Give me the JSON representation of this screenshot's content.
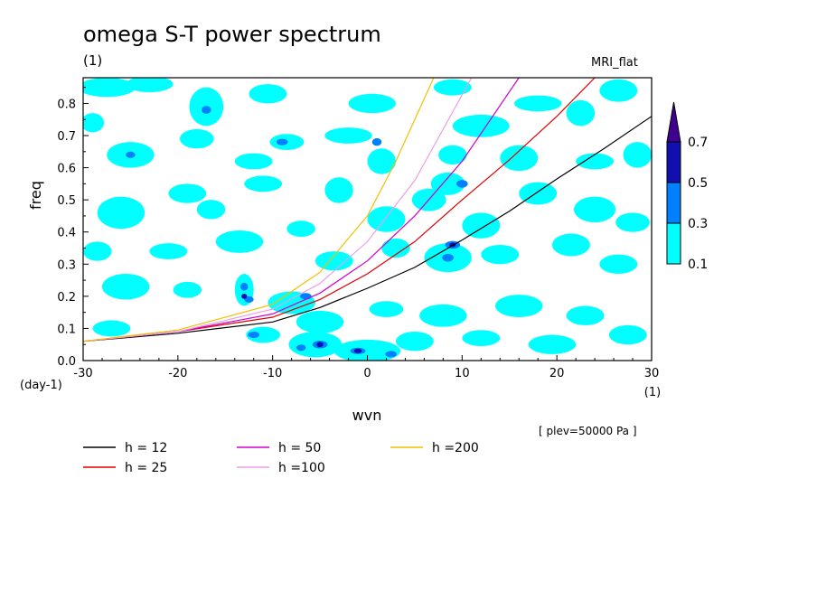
{
  "header": {
    "title": "omega S-T power spectrum",
    "units": "(1)",
    "model": "MRI_flat",
    "level_note": "[ plev=50000 Pa ]"
  },
  "colors": {
    "shade_0_1": "#00ffff",
    "shade_0_3": "#0080ff",
    "shade_0_5": "#1010b0",
    "shade_0_7": "#400090"
  },
  "chart_data": {
    "type": "contour-line",
    "title": "omega S-T power spectrum",
    "xlabel": "wvn",
    "x_unit": "(1)",
    "ylabel": "freq",
    "y_unit": "(day-1)",
    "xlim": [
      -30,
      30
    ],
    "ylim": [
      0,
      0.88
    ],
    "x_ticks": [
      -30,
      -20,
      -10,
      0,
      10,
      20,
      30
    ],
    "x_tick_labels": [
      "-30",
      "-20",
      "-10",
      "0",
      "10",
      "20",
      "30"
    ],
    "y_ticks": [
      0,
      0.1,
      0.2,
      0.3,
      0.4,
      0.5,
      0.6,
      0.7,
      0.8
    ],
    "y_tick_labels": [
      "0.0",
      "0.1",
      "0.2",
      "0.3",
      "0.4",
      "0.5",
      "0.6",
      "0.7",
      "0.8"
    ],
    "contour_levels": [
      0.1,
      0.3,
      0.5,
      0.7
    ],
    "colorbar_labels": [
      "0.1",
      "0.3",
      "0.5",
      "0.7"
    ],
    "series": [
      {
        "name": "h = 12",
        "color": "#000000",
        "x": [
          -30,
          -20,
          -10,
          -5,
          0,
          5,
          10,
          15,
          20,
          25,
          30
        ],
        "y": [
          0.06,
          0.085,
          0.12,
          0.165,
          0.225,
          0.29,
          0.375,
          0.465,
          0.565,
          0.66,
          0.76
        ]
      },
      {
        "name": "h = 25",
        "color": "#e00000",
        "x": [
          -30,
          -20,
          -10,
          -5,
          0,
          5,
          10,
          15,
          20,
          24
        ],
        "y": [
          0.06,
          0.09,
          0.135,
          0.19,
          0.27,
          0.37,
          0.5,
          0.625,
          0.76,
          0.88
        ]
      },
      {
        "name": "h = 50",
        "color": "#d000d0",
        "x": [
          -30,
          -20,
          -10,
          -5,
          0,
          5,
          10,
          16
        ],
        "y": [
          0.06,
          0.09,
          0.145,
          0.21,
          0.31,
          0.45,
          0.62,
          0.88
        ]
      },
      {
        "name": "h =100",
        "color": "#e8a0e8",
        "x": [
          -30,
          -20,
          -10,
          -5,
          0,
          5,
          11
        ],
        "y": [
          0.06,
          0.09,
          0.16,
          0.24,
          0.37,
          0.56,
          0.88
        ]
      },
      {
        "name": "h =200",
        "color": "#f0c000",
        "x": [
          -30,
          -20,
          -10,
          -5,
          0,
          3,
          7
        ],
        "y": [
          0.06,
          0.095,
          0.175,
          0.275,
          0.45,
          0.62,
          0.88
        ]
      }
    ],
    "blobs": [
      {
        "x": -27.5,
        "y": 0.85,
        "rx": 3.0,
        "ry": 0.03,
        "level": 0.1
      },
      {
        "x": -23.0,
        "y": 0.86,
        "rx": 2.5,
        "ry": 0.025,
        "level": 0.1
      },
      {
        "x": -17.0,
        "y": 0.79,
        "rx": 1.8,
        "ry": 0.06,
        "level": 0.1
      },
      {
        "x": -10.5,
        "y": 0.83,
        "rx": 2.0,
        "ry": 0.03,
        "level": 0.1
      },
      {
        "x": 0.5,
        "y": 0.8,
        "rx": 2.5,
        "ry": 0.03,
        "level": 0.1
      },
      {
        "x": 9.0,
        "y": 0.85,
        "rx": 2.0,
        "ry": 0.025,
        "level": 0.1
      },
      {
        "x": 12.0,
        "y": 0.73,
        "rx": 3.0,
        "ry": 0.035,
        "level": 0.1
      },
      {
        "x": 18.0,
        "y": 0.8,
        "rx": 2.5,
        "ry": 0.025,
        "level": 0.1
      },
      {
        "x": 22.5,
        "y": 0.77,
        "rx": 1.5,
        "ry": 0.04,
        "level": 0.1
      },
      {
        "x": 26.5,
        "y": 0.84,
        "rx": 2.0,
        "ry": 0.035,
        "level": 0.1
      },
      {
        "x": -29.0,
        "y": 0.74,
        "rx": 1.2,
        "ry": 0.03,
        "level": 0.1
      },
      {
        "x": -25.0,
        "y": 0.64,
        "rx": 2.5,
        "ry": 0.04,
        "level": 0.1
      },
      {
        "x": -18.0,
        "y": 0.69,
        "rx": 1.8,
        "ry": 0.03,
        "level": 0.1
      },
      {
        "x": -12.0,
        "y": 0.62,
        "rx": 2.0,
        "ry": 0.025,
        "level": 0.1
      },
      {
        "x": -8.5,
        "y": 0.68,
        "rx": 1.8,
        "ry": 0.025,
        "level": 0.1
      },
      {
        "x": -2.0,
        "y": 0.7,
        "rx": 2.5,
        "ry": 0.025,
        "level": 0.1
      },
      {
        "x": 1.5,
        "y": 0.62,
        "rx": 1.5,
        "ry": 0.04,
        "level": 0.1
      },
      {
        "x": 9.0,
        "y": 0.64,
        "rx": 1.5,
        "ry": 0.03,
        "level": 0.1
      },
      {
        "x": 16.0,
        "y": 0.63,
        "rx": 2.0,
        "ry": 0.04,
        "level": 0.1
      },
      {
        "x": 24.0,
        "y": 0.62,
        "rx": 2.0,
        "ry": 0.025,
        "level": 0.1
      },
      {
        "x": 28.5,
        "y": 0.64,
        "rx": 1.5,
        "ry": 0.04,
        "level": 0.1
      },
      {
        "x": -26.0,
        "y": 0.46,
        "rx": 2.5,
        "ry": 0.05,
        "level": 0.1
      },
      {
        "x": -19.0,
        "y": 0.52,
        "rx": 2.0,
        "ry": 0.03,
        "level": 0.1
      },
      {
        "x": -16.5,
        "y": 0.47,
        "rx": 1.5,
        "ry": 0.03,
        "level": 0.1
      },
      {
        "x": -11.0,
        "y": 0.55,
        "rx": 2.0,
        "ry": 0.025,
        "level": 0.1
      },
      {
        "x": -3.0,
        "y": 0.53,
        "rx": 1.5,
        "ry": 0.04,
        "level": 0.1
      },
      {
        "x": 2.0,
        "y": 0.44,
        "rx": 2.0,
        "ry": 0.04,
        "level": 0.1
      },
      {
        "x": 6.5,
        "y": 0.5,
        "rx": 1.8,
        "ry": 0.035,
        "level": 0.1
      },
      {
        "x": 8.5,
        "y": 0.55,
        "rx": 1.8,
        "ry": 0.035,
        "level": 0.1
      },
      {
        "x": 12.0,
        "y": 0.42,
        "rx": 2.0,
        "ry": 0.04,
        "level": 0.1
      },
      {
        "x": 18.0,
        "y": 0.52,
        "rx": 2.0,
        "ry": 0.035,
        "level": 0.1
      },
      {
        "x": 24.0,
        "y": 0.47,
        "rx": 2.2,
        "ry": 0.04,
        "level": 0.1
      },
      {
        "x": 28.0,
        "y": 0.43,
        "rx": 1.8,
        "ry": 0.03,
        "level": 0.1
      },
      {
        "x": -28.5,
        "y": 0.34,
        "rx": 1.5,
        "ry": 0.03,
        "level": 0.1
      },
      {
        "x": -21.0,
        "y": 0.34,
        "rx": 2.0,
        "ry": 0.025,
        "level": 0.1
      },
      {
        "x": -13.5,
        "y": 0.37,
        "rx": 2.5,
        "ry": 0.035,
        "level": 0.1
      },
      {
        "x": -7.0,
        "y": 0.41,
        "rx": 1.5,
        "ry": 0.025,
        "level": 0.1
      },
      {
        "x": -3.5,
        "y": 0.31,
        "rx": 2.0,
        "ry": 0.03,
        "level": 0.1
      },
      {
        "x": 3.0,
        "y": 0.35,
        "rx": 1.5,
        "ry": 0.03,
        "level": 0.1
      },
      {
        "x": 8.5,
        "y": 0.32,
        "rx": 2.5,
        "ry": 0.045,
        "level": 0.1
      },
      {
        "x": 14.0,
        "y": 0.33,
        "rx": 2.0,
        "ry": 0.03,
        "level": 0.1
      },
      {
        "x": 21.5,
        "y": 0.36,
        "rx": 2.0,
        "ry": 0.035,
        "level": 0.1
      },
      {
        "x": 26.5,
        "y": 0.3,
        "rx": 2.0,
        "ry": 0.03,
        "level": 0.1
      },
      {
        "x": -25.5,
        "y": 0.23,
        "rx": 2.5,
        "ry": 0.04,
        "level": 0.1
      },
      {
        "x": -19.0,
        "y": 0.22,
        "rx": 1.5,
        "ry": 0.025,
        "level": 0.1
      },
      {
        "x": -13.0,
        "y": 0.22,
        "rx": 1.0,
        "ry": 0.05,
        "level": 0.1
      },
      {
        "x": -8.0,
        "y": 0.18,
        "rx": 2.5,
        "ry": 0.035,
        "level": 0.1
      },
      {
        "x": -5.0,
        "y": 0.12,
        "rx": 2.5,
        "ry": 0.035,
        "level": 0.1
      },
      {
        "x": 2.0,
        "y": 0.16,
        "rx": 1.8,
        "ry": 0.025,
        "level": 0.1
      },
      {
        "x": 8.0,
        "y": 0.14,
        "rx": 2.5,
        "ry": 0.035,
        "level": 0.1
      },
      {
        "x": 16.0,
        "y": 0.17,
        "rx": 2.5,
        "ry": 0.035,
        "level": 0.1
      },
      {
        "x": 23.0,
        "y": 0.14,
        "rx": 2.0,
        "ry": 0.03,
        "level": 0.1
      },
      {
        "x": -27.0,
        "y": 0.1,
        "rx": 2.0,
        "ry": 0.025,
        "level": 0.1
      },
      {
        "x": -11.0,
        "y": 0.08,
        "rx": 1.8,
        "ry": 0.025,
        "level": 0.1
      },
      {
        "x": -5.5,
        "y": 0.05,
        "rx": 2.8,
        "ry": 0.04,
        "level": 0.1
      },
      {
        "x": 0.0,
        "y": 0.03,
        "rx": 3.5,
        "ry": 0.035,
        "level": 0.1
      },
      {
        "x": 5.0,
        "y": 0.06,
        "rx": 2.0,
        "ry": 0.03,
        "level": 0.1
      },
      {
        "x": 12.0,
        "y": 0.07,
        "rx": 2.0,
        "ry": 0.025,
        "level": 0.1
      },
      {
        "x": 19.5,
        "y": 0.05,
        "rx": 2.5,
        "ry": 0.03,
        "level": 0.1
      },
      {
        "x": 27.5,
        "y": 0.08,
        "rx": 2.0,
        "ry": 0.03,
        "level": 0.1
      },
      {
        "x": -17.0,
        "y": 0.78,
        "rx": 0.5,
        "ry": 0.012,
        "level": 0.3
      },
      {
        "x": -9.0,
        "y": 0.68,
        "rx": 0.6,
        "ry": 0.01,
        "level": 0.3
      },
      {
        "x": 1.0,
        "y": 0.68,
        "rx": 0.5,
        "ry": 0.012,
        "level": 0.3
      },
      {
        "x": 10.0,
        "y": 0.55,
        "rx": 0.6,
        "ry": 0.012,
        "level": 0.3
      },
      {
        "x": 9.0,
        "y": 0.36,
        "rx": 0.8,
        "ry": 0.012,
        "level": 0.3
      },
      {
        "x": 8.5,
        "y": 0.32,
        "rx": 0.6,
        "ry": 0.012,
        "level": 0.3
      },
      {
        "x": -13.0,
        "y": 0.23,
        "rx": 0.4,
        "ry": 0.012,
        "level": 0.3
      },
      {
        "x": -12.5,
        "y": 0.19,
        "rx": 0.5,
        "ry": 0.01,
        "level": 0.3
      },
      {
        "x": -6.5,
        "y": 0.2,
        "rx": 0.6,
        "ry": 0.01,
        "level": 0.3
      },
      {
        "x": -12.0,
        "y": 0.08,
        "rx": 0.6,
        "ry": 0.01,
        "level": 0.3
      },
      {
        "x": -5.0,
        "y": 0.05,
        "rx": 0.8,
        "ry": 0.012,
        "level": 0.3
      },
      {
        "x": -7.0,
        "y": 0.04,
        "rx": 0.5,
        "ry": 0.01,
        "level": 0.3
      },
      {
        "x": -1.0,
        "y": 0.03,
        "rx": 0.8,
        "ry": 0.01,
        "level": 0.3
      },
      {
        "x": 2.5,
        "y": 0.02,
        "rx": 0.6,
        "ry": 0.01,
        "level": 0.3
      },
      {
        "x": -25.0,
        "y": 0.64,
        "rx": 0.5,
        "ry": 0.01,
        "level": 0.3
      },
      {
        "x": -13.0,
        "y": 0.2,
        "rx": 0.3,
        "ry": 0.008,
        "level": 0.5
      },
      {
        "x": -5.0,
        "y": 0.05,
        "rx": 0.35,
        "ry": 0.008,
        "level": 0.5
      },
      {
        "x": -1.0,
        "y": 0.03,
        "rx": 0.4,
        "ry": 0.007,
        "level": 0.5
      },
      {
        "x": 9.0,
        "y": 0.36,
        "rx": 0.35,
        "ry": 0.007,
        "level": 0.5
      }
    ]
  }
}
